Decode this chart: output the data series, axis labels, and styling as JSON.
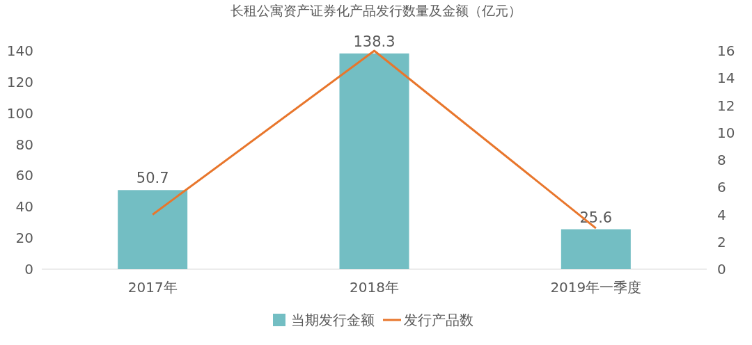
{
  "chart_data": {
    "type": "bar",
    "title": "长租公寓资产证券化产品发行数量及金额（亿元）",
    "categories": [
      "2017年",
      "2018年",
      "2019年一季度"
    ],
    "series": [
      {
        "name": "当期发行金额",
        "color": "#73bec3",
        "values": [
          50.7,
          138.3,
          25.6
        ],
        "value_labels": [
          "50.7",
          "138.3",
          "25.6"
        ]
      },
      {
        "name": "发行产品数",
        "type": "line",
        "axis": "y2",
        "color": "#e8762c",
        "values": [
          4,
          16,
          3
        ]
      }
    ],
    "ylim": [
      0,
      140
    ],
    "yticks": [
      0,
      20,
      40,
      60,
      80,
      100,
      120,
      140
    ],
    "y2lim": [
      0,
      16
    ],
    "y2ticks": [
      0,
      2,
      4,
      6,
      8,
      10,
      12,
      14,
      16
    ],
    "legend": "bottom"
  }
}
